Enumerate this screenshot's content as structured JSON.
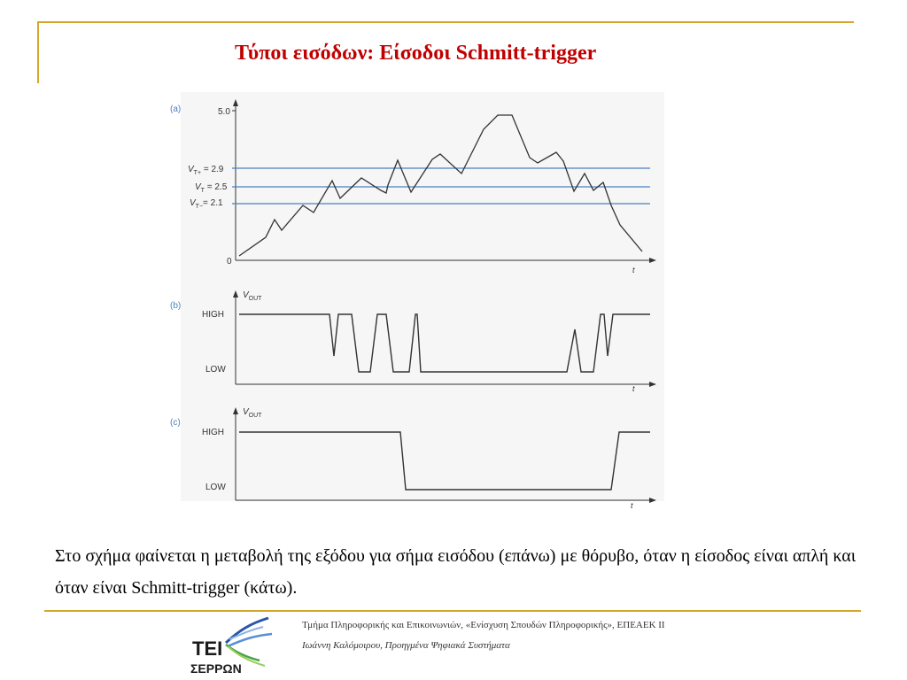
{
  "title": "Τύποι εισόδων: Είσοδοι Schmitt-trigger",
  "figure": {
    "panel_a": {
      "label": "(a)",
      "y_max_label": "5.0",
      "y_zero_label": "0",
      "time_label": "t",
      "thresholds": [
        {
          "symbol": "V",
          "sub": "T+",
          "text": " = 2.9",
          "value": 2.9
        },
        {
          "symbol": "V",
          "sub": "T",
          "text": " = 2.5",
          "value": 2.5
        },
        {
          "symbol": "V",
          "sub": "T−",
          "text": "= 2.1",
          "value": 2.1
        }
      ]
    },
    "panel_b": {
      "label": "(b)",
      "vout_symbol": "V",
      "vout_sub": "OUT",
      "high": "HIGH",
      "low": "LOW",
      "time_label": "t"
    },
    "panel_c": {
      "label": "(c)",
      "vout_symbol": "V",
      "vout_sub": "OUT",
      "high": "HIGH",
      "low": "LOW",
      "time_label": "t"
    }
  },
  "caption": "Στο σχήμα φαίνεται η μεταβολή της εξόδου για σήμα εισόδου (επάνω) με θόρυβο, όταν η είσοδος είναι απλή και όταν είναι Schmitt-trigger (κάτω).",
  "footer": {
    "line1": "Τμήμα Πληροφορικής και Επικοινωνιών, «Ενίσχυση Σπουδών Πληροφορικής», ΕΠΕΑΕΚ ΙΙ",
    "line2": "Ιωάννη Καλόμοιρου, Προηγμένα Ψηφιακά Συστήματα"
  },
  "logo": {
    "line1": "ΤΕΙ",
    "line2": "ΣΕΡΡΩΝ"
  },
  "colors": {
    "title": "#c00000",
    "frame": "#d4a72c",
    "threshold": "#4a7fc1",
    "label_blue": "#4a7fc1"
  }
}
